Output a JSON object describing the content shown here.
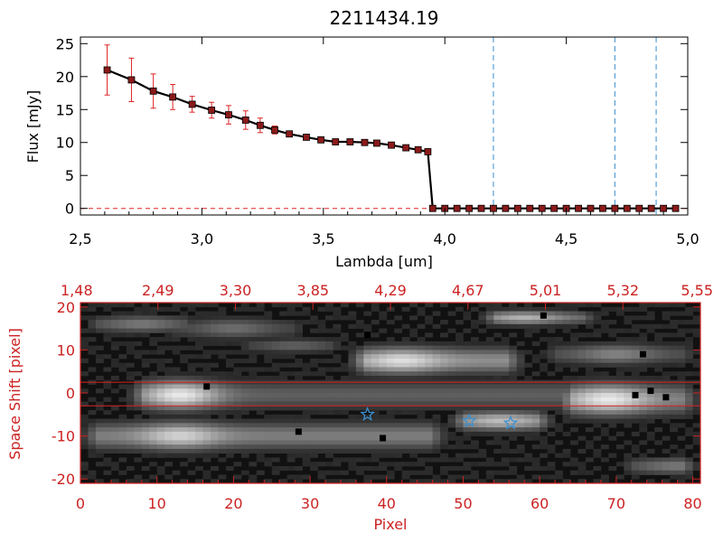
{
  "chart_data": [
    {
      "type": "line",
      "title": "2211434.19",
      "xlabel": "Lambda [um]",
      "ylabel": "Flux [mJy]",
      "xlim": [
        2.5,
        5.0
      ],
      "ylim": [
        -1,
        26
      ],
      "x_ticks": [
        "2.5",
        "3.0",
        "3.5",
        "4.0",
        "4.5",
        "5.0"
      ],
      "y_ticks": [
        "0",
        "5",
        "10",
        "15",
        "20",
        "25"
      ],
      "colors": {
        "line": "#000000",
        "marker": "#8b1a1a",
        "error": "#dd2222",
        "vline": "#3a8fd0",
        "hline": "#dd2222"
      },
      "series": [
        {
          "name": "flux",
          "x": [
            2.61,
            2.71,
            2.8,
            2.88,
            2.96,
            3.04,
            3.11,
            3.18,
            3.24,
            3.3,
            3.36,
            3.43,
            3.49,
            3.55,
            3.61,
            3.67,
            3.72,
            3.78,
            3.84,
            3.89,
            3.93,
            3.95,
            4.0,
            4.05,
            4.1,
            4.15,
            4.2,
            4.25,
            4.3,
            4.35,
            4.4,
            4.45,
            4.5,
            4.55,
            4.6,
            4.65,
            4.7,
            4.75,
            4.8,
            4.85,
            4.9,
            4.95
          ],
          "y": [
            21.0,
            19.5,
            17.8,
            16.9,
            15.8,
            14.9,
            14.2,
            13.4,
            12.6,
            11.9,
            11.3,
            10.8,
            10.4,
            10.1,
            10.1,
            10.0,
            9.9,
            9.6,
            9.2,
            8.9,
            8.6,
            0,
            0,
            0,
            0,
            0,
            0,
            0,
            0,
            0,
            0,
            0,
            0,
            0,
            0,
            0,
            0,
            0,
            0,
            0,
            0,
            0
          ],
          "yerr": [
            3.8,
            3.3,
            2.6,
            1.9,
            1.2,
            1.2,
            1.4,
            1.4,
            1.1,
            0.6,
            0.4,
            0.3,
            0.2,
            0.2,
            0.2,
            0.2,
            0.2,
            0.2,
            0.2,
            0.2,
            0.3,
            0,
            0,
            0,
            0,
            0,
            0,
            0,
            0,
            0,
            0,
            0,
            0,
            0,
            0,
            0,
            0,
            0,
            0,
            0,
            0,
            0
          ]
        }
      ],
      "vlines": [
        4.2,
        4.7,
        4.87
      ],
      "hline": 0
    },
    {
      "type": "heatmap",
      "xlabel": "Pixel",
      "ylabel": "Space Shift [pixel]",
      "xlim": [
        0,
        81
      ],
      "ylim": [
        -21,
        21
      ],
      "x_ticks": [
        "0",
        "10",
        "20",
        "30",
        "40",
        "50",
        "60",
        "70",
        "80"
      ],
      "y_ticks": [
        "-20",
        "-10",
        "0",
        "10",
        "20"
      ],
      "top_axis_ticks": [
        "1.48",
        "2.49",
        "3.30",
        "3.85",
        "4.29",
        "4.67",
        "5.01",
        "5.32",
        "5.55"
      ],
      "colors": {
        "axis": "#cc2222",
        "star": "#3a8fd0",
        "background": "#111111"
      },
      "hlines": [
        2.5,
        -3.0
      ],
      "stars": [
        {
          "x": 37.5,
          "y": -5
        },
        {
          "x": 50.8,
          "y": -6.5
        },
        {
          "x": 56.2,
          "y": -7
        }
      ],
      "bands": [
        {
          "x0": 6,
          "x1": 81,
          "yc": -0.5,
          "hw": 4.2,
          "peak": 0.95,
          "sx": 13,
          "taper": 0.35
        },
        {
          "x0": 0,
          "x1": 48,
          "yc": -10,
          "hw": 4.0,
          "peak": 0.85,
          "sx": 13,
          "taper": 0.55
        },
        {
          "x0": 35,
          "x1": 58,
          "yc": 7.5,
          "hw": 3.8,
          "peak": 0.9,
          "sx": 42,
          "taper": 0.6
        },
        {
          "x0": 48,
          "x1": 62,
          "yc": -6.5,
          "hw": 2.8,
          "peak": 0.75,
          "sx": 55,
          "taper": 0.6
        },
        {
          "x0": 62,
          "x1": 81,
          "yc": -1.5,
          "hw": 4.5,
          "peak": 0.95,
          "sx": 69,
          "taper": 0.5
        },
        {
          "x0": 0,
          "x1": 16,
          "yc": 16,
          "hw": 2.5,
          "peak": 0.45,
          "sx": 8,
          "taper": 0.5
        },
        {
          "x0": 10,
          "x1": 30,
          "yc": 15,
          "hw": 3.0,
          "peak": 0.4,
          "sx": 20,
          "taper": 0.5
        },
        {
          "x0": 52,
          "x1": 68,
          "yc": 17.5,
          "hw": 2.0,
          "peak": 0.7,
          "sx": 58,
          "taper": 0.5
        },
        {
          "x0": 60,
          "x1": 81,
          "yc": 9,
          "hw": 3.0,
          "peak": 0.5,
          "sx": 70,
          "taper": 0.5
        },
        {
          "x0": 20,
          "x1": 35,
          "yc": 11,
          "hw": 2.0,
          "peak": 0.35,
          "sx": 28,
          "taper": 0.5
        },
        {
          "x0": 70,
          "x1": 81,
          "yc": -17,
          "hw": 2.5,
          "peak": 0.45,
          "sx": 78,
          "taper": 0.5
        }
      ],
      "dark_pixels": [
        [
          16.5,
          1.5
        ],
        [
          28.5,
          -9
        ],
        [
          37.5,
          13.5
        ],
        [
          39.5,
          -10.5
        ],
        [
          60.5,
          18
        ],
        [
          72.5,
          -0.5
        ],
        [
          74.5,
          0.5
        ],
        [
          76.5,
          -1
        ],
        [
          73.5,
          9
        ]
      ]
    }
  ]
}
